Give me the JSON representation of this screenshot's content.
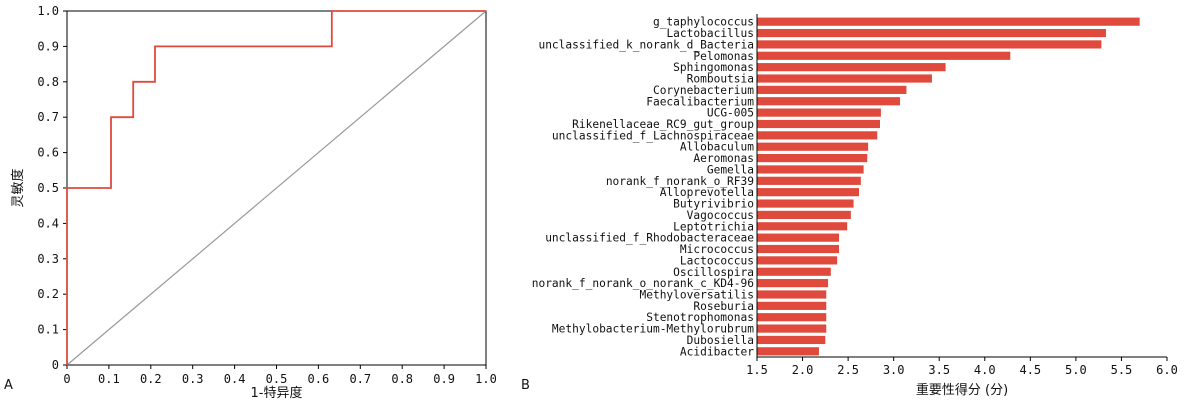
{
  "panel_labels": {
    "a": "A",
    "b": "B"
  },
  "colors": {
    "roc_line": "#e04a3d",
    "diagonal": "#999999",
    "bar": "#e04a3d",
    "axis": "#000000"
  },
  "chart_data": [
    {
      "type": "line",
      "title": "",
      "xlabel": "1-特异度",
      "ylabel": "灵敏度",
      "xlim": [
        0,
        1.0
      ],
      "ylim": [
        0,
        1.0
      ],
      "x_ticks": [
        0,
        0.1,
        0.2,
        0.3,
        0.4,
        0.5,
        0.6,
        0.7,
        0.8,
        0.9,
        1.0
      ],
      "x_tick_labels": [
        "0",
        "0.1",
        "0.2",
        "0.3",
        "0.4",
        "0.5",
        "0.6",
        "0.7",
        "0.8",
        "0.9",
        "1.0"
      ],
      "y_ticks": [
        0,
        0.1,
        0.2,
        0.3,
        0.4,
        0.5,
        0.6,
        0.7,
        0.8,
        0.9,
        1.0
      ],
      "y_tick_labels": [
        "0",
        "0.1",
        "0.2",
        "0.3",
        "0.4",
        "0.5",
        "0.6",
        "0.7",
        "0.8",
        "0.9",
        "1.0"
      ],
      "grid": false,
      "series": [
        {
          "x": [
            0,
            0,
            0.105,
            0.105,
            0.158,
            0.158,
            0.21,
            0.21,
            0.632,
            0.632,
            1.0
          ],
          "y": [
            0,
            0.5,
            0.5,
            0.7,
            0.7,
            0.8,
            0.8,
            0.9,
            0.9,
            1.0,
            1.0
          ]
        },
        {
          "x": [
            0,
            1.0
          ],
          "y": [
            0,
            1.0
          ]
        }
      ]
    },
    {
      "type": "bar",
      "orientation": "horizontal",
      "title": "",
      "xlabel": "重要性得分 (分)",
      "ylabel": "",
      "xlim": [
        1.5,
        6.0
      ],
      "x_ticks": [
        1.5,
        2.0,
        2.5,
        3.0,
        3.5,
        4.0,
        4.5,
        5.0,
        5.5,
        6.0
      ],
      "x_tick_labels": [
        "1.5",
        "2.0",
        "2.5",
        "3.0",
        "3.5",
        "4.0",
        "4.5",
        "5.0",
        "5.5",
        "6.0"
      ],
      "grid": false,
      "categories": [
        "g_taphylococcus",
        "Lactobacillus",
        "unclassified_k_norank_d_Bacteria",
        "Pelomonas",
        "Sphingomonas",
        "Romboutsia",
        "Corynebacterium",
        "Faecalibacterium",
        "UCG-005",
        "Rikenellaceae_RC9_gut_group",
        "unclassified_f_Lachnospiraceae",
        "Allobaculum",
        "Aeromonas",
        "Gemella",
        "norank_f_norank_o_RF39",
        "Alloprevotella",
        "Butyrivibrio",
        "Vagococcus",
        "Leptotrichia",
        "unclassified_f_Rhodobacteraceae",
        "Micrococcus",
        "Lactococcus",
        "Oscillospira",
        "norank_f_norank_o_norank_c_KD4-96",
        "Methyloversatilis",
        "Roseburia",
        "Stenotrophomonas",
        "Methylobacterium-Methylorubrum",
        "Dubosiella",
        "Acidibacter"
      ],
      "values": [
        5.7,
        5.33,
        5.28,
        4.28,
        3.57,
        3.42,
        3.14,
        3.07,
        2.86,
        2.85,
        2.82,
        2.72,
        2.71,
        2.67,
        2.64,
        2.62,
        2.56,
        2.53,
        2.49,
        2.4,
        2.4,
        2.38,
        2.31,
        2.28,
        2.26,
        2.26,
        2.26,
        2.26,
        2.25,
        2.18
      ]
    }
  ]
}
